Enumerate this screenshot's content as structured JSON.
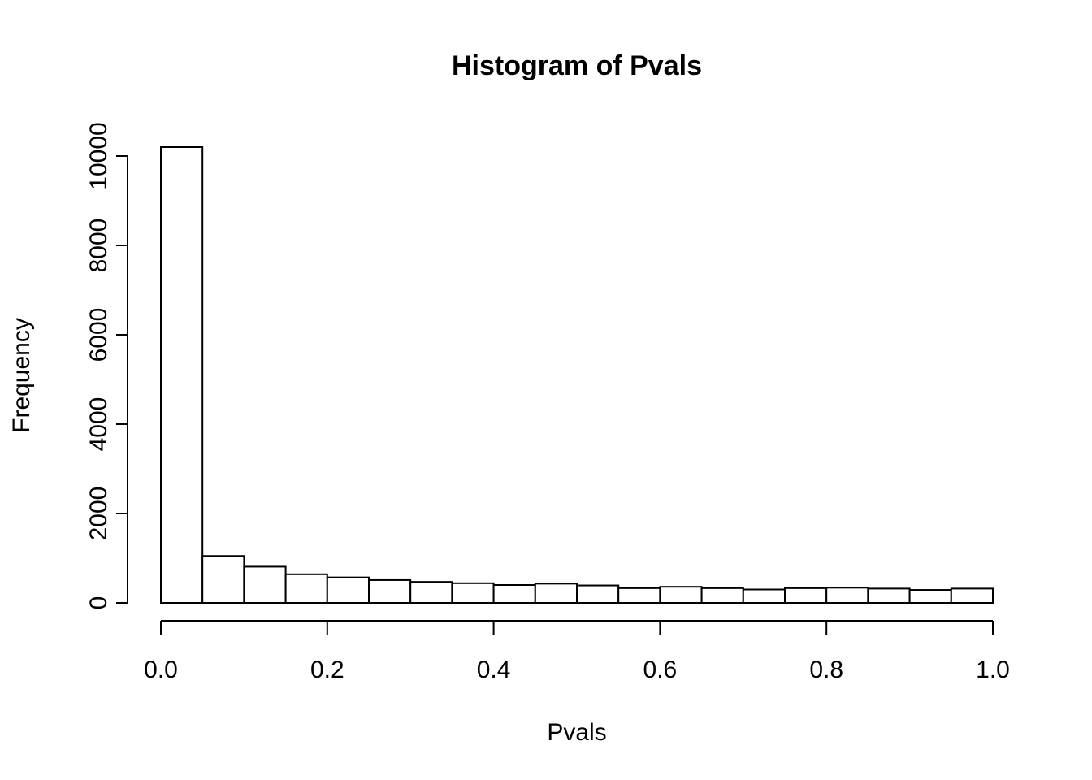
{
  "chart_data": {
    "type": "bar",
    "title": "Histogram of Pvals",
    "xlabel": "Pvals",
    "ylabel": "Frequency",
    "bin_edges": [
      0.0,
      0.05,
      0.1,
      0.15,
      0.2,
      0.25,
      0.3,
      0.35,
      0.4,
      0.45,
      0.5,
      0.55,
      0.6,
      0.65,
      0.7,
      0.75,
      0.8,
      0.85,
      0.9,
      0.95,
      1.0
    ],
    "values": [
      10200,
      1050,
      810,
      640,
      570,
      510,
      470,
      440,
      400,
      430,
      390,
      330,
      360,
      330,
      300,
      330,
      340,
      320,
      290,
      320
    ],
    "xlim": [
      0,
      1
    ],
    "ylim": [
      0,
      10200
    ],
    "x_ticks": [
      0.0,
      0.2,
      0.4,
      0.6,
      0.8,
      1.0
    ],
    "x_tick_labels": [
      "0.0",
      "0.2",
      "0.4",
      "0.6",
      "0.8",
      "1.0"
    ],
    "y_ticks": [
      0,
      2000,
      4000,
      6000,
      8000,
      10000
    ],
    "y_tick_labels": [
      "0",
      "2000",
      "4000",
      "6000",
      "8000",
      "10000"
    ],
    "grid": false,
    "legend": "none",
    "bar_fill": "#ffffff",
    "bar_stroke": "#000000"
  }
}
